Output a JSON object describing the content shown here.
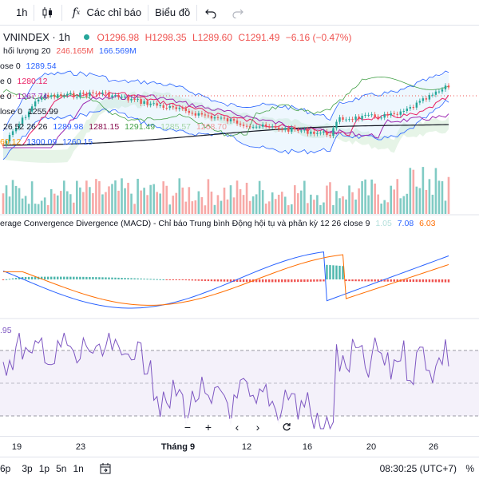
{
  "toolbar": {
    "interval": "1h",
    "indicators_label": "Các chỉ báo",
    "chart_label": "Biểu đồ"
  },
  "symbol": {
    "name": "VNINDEX · 1h",
    "open": "O1296.98",
    "high": "H1298.35",
    "low": "L1289.60",
    "close": "C1291.49",
    "change": "−6.16 (−0.47%)"
  },
  "legends": {
    "volume_label": "hối lượng 20",
    "volume_value1": "246.165M",
    "volume_value2": "166.569M",
    "bb_label": "ose 0",
    "bb_value": "1289.54",
    "ma1_label": "e 0",
    "ma1_value": "1280.12",
    "ma2_label": "e 0",
    "ma2_value": "1267.74",
    "ma3_label": "lose 0",
    "ma3_value": "1255.99",
    "ichimoku_label": "26 52 26 26",
    "ichimoku_values": [
      "1289.98",
      "1281.15",
      "1291.49",
      "1285.57",
      "1268.70"
    ],
    "ichimoku_row2": [
      "60.12",
      "1300.09",
      "1260.15"
    ],
    "macd_title": "erage Convergence Divergence (MACD) - Chỉ báo Trung bình Động hội tụ và phân kỳ 12 26 close 9",
    "macd_values": [
      "1.05",
      "7.08",
      "6.03"
    ],
    "rsi_value": ".95"
  },
  "time_axis": [
    "19",
    "23",
    "Tháng 9",
    "12",
    "16",
    "20",
    "26"
  ],
  "bottom": {
    "ranges": [
      "6p",
      "3p",
      "1p",
      "5n",
      "1n"
    ],
    "clock": "08:30:25 (UTC+7)",
    "percent_sign": "%"
  },
  "colors": {
    "up": "#26a69a",
    "down": "#ef5350",
    "macd": "#2962ff",
    "signal": "#ff6d00",
    "rsi": "#7e57c2"
  }
}
